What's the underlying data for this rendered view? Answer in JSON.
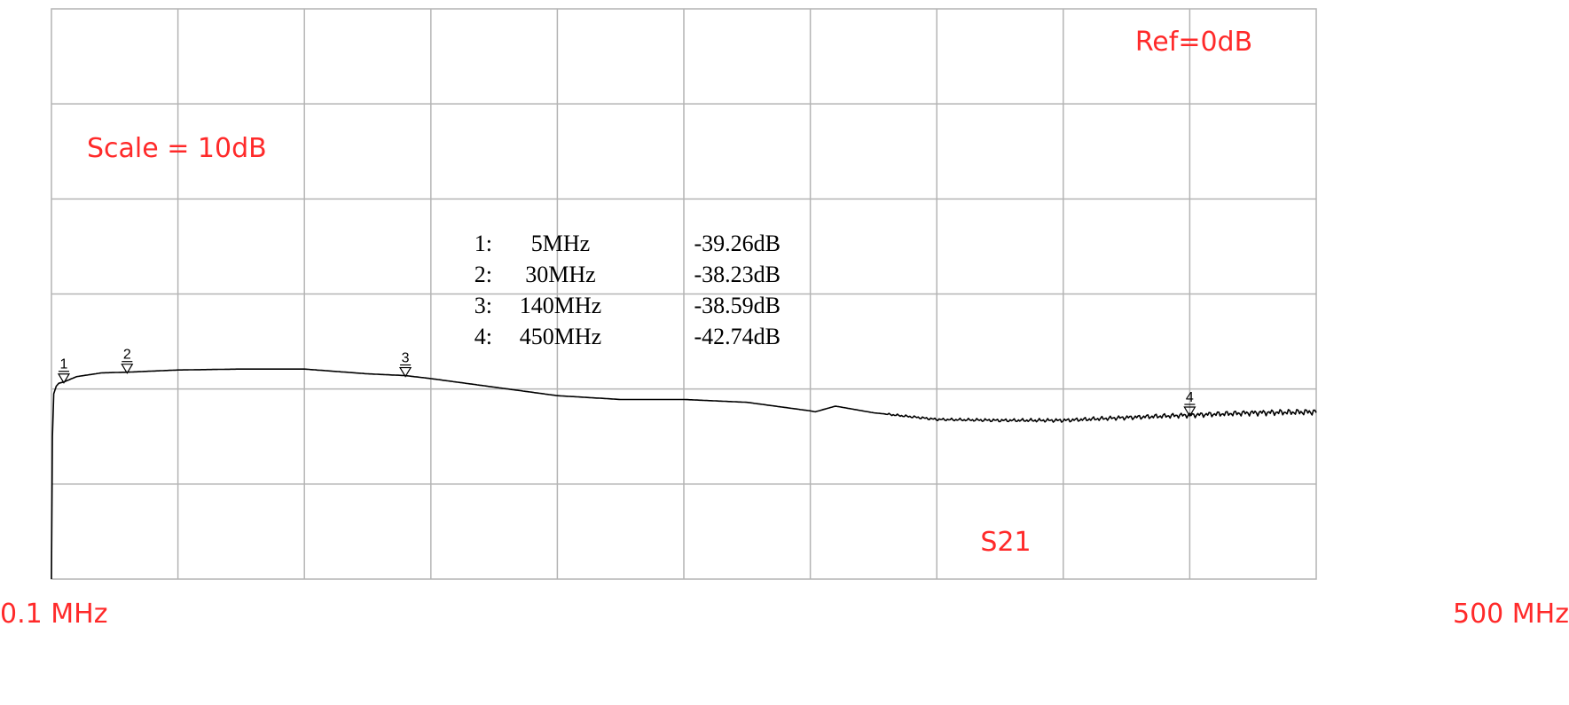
{
  "chart_data": {
    "type": "line",
    "title": "",
    "xlabel": "",
    "ylabel": "",
    "x_start_label": "0.1 MHz",
    "x_end_label": "500 MHz",
    "xlim": [
      0.1,
      500
    ],
    "x_scale": "linear",
    "ylim": [
      -60,
      0
    ],
    "ref_label": "Ref=0dB",
    "scale_label": "Scale = 10dB",
    "trace_label": "S21",
    "grid": true,
    "x_divisions": 10,
    "y_divisions": 6,
    "series": [
      {
        "x": [
          0.1,
          0.5,
          1,
          2,
          3,
          5,
          10,
          20,
          30,
          50,
          75,
          100,
          125,
          140,
          150,
          175,
          200,
          225,
          250,
          275,
          300,
          302,
          310,
          325,
          350,
          375,
          400,
          425,
          450,
          475,
          500
        ],
        "values": [
          -60,
          -45,
          -40.5,
          -39.7,
          -39.4,
          -39.26,
          -38.7,
          -38.3,
          -38.23,
          -38.0,
          -37.9,
          -37.9,
          -38.4,
          -38.59,
          -38.9,
          -39.8,
          -40.7,
          -41.1,
          -41.1,
          -41.4,
          -42.3,
          -42.4,
          -41.8,
          -42.5,
          -43.2,
          -43.3,
          -43.3,
          -43.0,
          -42.74,
          -42.5,
          -42.4
        ]
      }
    ],
    "markers": [
      {
        "label": "1",
        "freq": "5MHz",
        "value": "-39.26dB",
        "x": 5,
        "y": -39.26
      },
      {
        "label": "2",
        "freq": "30MHz",
        "value": "-38.23dB",
        "x": 30,
        "y": -38.23
      },
      {
        "label": "3",
        "freq": "140MHz",
        "value": "-38.59dB",
        "x": 140,
        "y": -38.59
      },
      {
        "label": "4",
        "freq": "450MHz",
        "value": "-42.74dB",
        "x": 450,
        "y": -42.74
      }
    ],
    "marker_prefix": ":"
  },
  "colors": {
    "grid": "#b4b4b4",
    "trace": "#000000",
    "annotation": "#ff2a2a",
    "background": "#ffffff"
  }
}
